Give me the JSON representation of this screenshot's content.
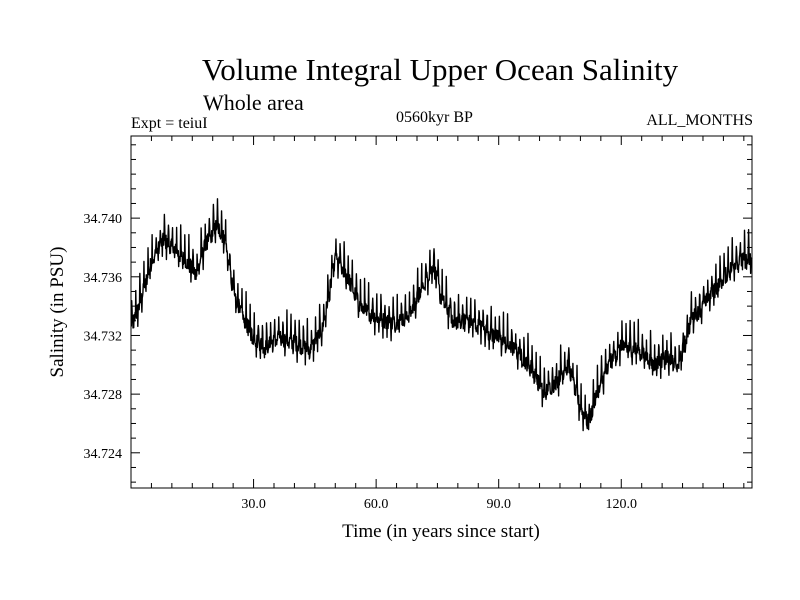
{
  "chart_data": {
    "type": "line",
    "title": "Volume Integral Upper Ocean Salinity",
    "subtitle": "Whole area",
    "experiment": "Expt = teiuI",
    "period": "0560kyr BP",
    "months": "ALL_MONTHS",
    "xlabel": "Time (in years since start)",
    "ylabel": "Salinity (in PSU)",
    "xlim": [
      0,
      152
    ],
    "ylim": [
      34.7216,
      34.7456
    ],
    "x_ticks": [
      {
        "value": 30,
        "label": "30.0"
      },
      {
        "value": 60,
        "label": "60.0"
      },
      {
        "value": 90,
        "label": "90.0"
      },
      {
        "value": 120,
        "label": "120.0"
      }
    ],
    "y_ticks": [
      {
        "value": 34.724,
        "label": "34.724"
      },
      {
        "value": 34.728,
        "label": "34.728"
      },
      {
        "value": 34.732,
        "label": "34.732"
      },
      {
        "value": 34.736,
        "label": "34.736"
      },
      {
        "value": 34.74,
        "label": "34.740"
      }
    ],
    "series": [
      {
        "name": "Salinity",
        "color": "#000000",
        "resolution": "monthly",
        "trend_x": [
          0,
          2,
          5,
          8,
          10,
          13,
          16,
          18,
          21,
          23,
          25,
          27,
          30,
          33,
          36,
          40,
          44,
          47,
          50,
          53,
          56,
          60,
          64,
          68,
          71,
          74,
          76,
          79,
          82,
          86,
          90,
          94,
          98,
          101,
          104,
          107,
          110,
          112,
          114,
          117,
          120,
          124,
          128,
          131,
          134,
          137,
          140,
          144,
          148,
          152
        ],
        "trend_y": [
          34.7325,
          34.734,
          34.737,
          34.7385,
          34.738,
          34.7372,
          34.7362,
          34.738,
          34.7395,
          34.7385,
          34.735,
          34.7335,
          34.7318,
          34.7312,
          34.7318,
          34.7315,
          34.731,
          34.7325,
          34.7372,
          34.736,
          34.734,
          34.7332,
          34.7328,
          34.7333,
          34.735,
          34.7368,
          34.7345,
          34.733,
          34.733,
          34.7325,
          34.7318,
          34.731,
          34.7298,
          34.728,
          34.7288,
          34.73,
          34.727,
          34.726,
          34.728,
          34.73,
          34.7312,
          34.731,
          34.73,
          34.7305,
          34.7298,
          34.733,
          34.734,
          34.7355,
          34.737,
          34.7372
        ]
      }
    ]
  }
}
